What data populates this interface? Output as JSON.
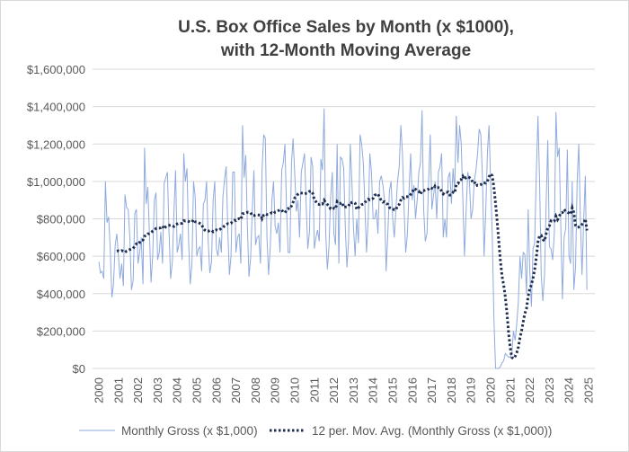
{
  "chart_data": {
    "type": "line",
    "title_line1": "U.S. Box Office Sales by Month (x $1000),",
    "title_line2": "with 12-Month Moving Average",
    "xlabel": "",
    "ylabel": "",
    "ylim": [
      0,
      1600000
    ],
    "xlim": [
      2000,
      2025
    ],
    "grid": true,
    "legend_position": "bottom",
    "y_tick_labels": [
      "$0",
      "$200,000",
      "$400,000",
      "$600,000",
      "$800,000",
      "$1,000,000",
      "$1,200,000",
      "$1,400,000",
      "$1,600,000"
    ],
    "y_ticks": [
      0,
      200000,
      400000,
      600000,
      800000,
      1000000,
      1200000,
      1400000,
      1600000
    ],
    "x_tick_labels": [
      "2000",
      "2001",
      "2002",
      "2003",
      "2004",
      "2005",
      "2006",
      "2007",
      "2008",
      "2009",
      "2010",
      "2011",
      "2012",
      "2013",
      "2014",
      "2015",
      "2016",
      "2017",
      "2018",
      "2019",
      "2020",
      "2021",
      "2022",
      "2023",
      "2024",
      "2025"
    ],
    "start": "2000-01",
    "frequency": "monthly",
    "series": [
      {
        "name": "Monthly Gross (x $1,000)",
        "color": "#8faadc",
        "style": "solid",
        "values": [
          570000,
          510000,
          520000,
          480000,
          1000000,
          780000,
          810000,
          640000,
          380000,
          450000,
          660000,
          720000,
          600000,
          480000,
          560000,
          440000,
          930000,
          860000,
          850000,
          700000,
          420000,
          470000,
          830000,
          850000,
          560000,
          620000,
          700000,
          450000,
          1180000,
          880000,
          970000,
          720000,
          460000,
          600000,
          900000,
          940000,
          580000,
          620000,
          730000,
          560000,
          990000,
          1020000,
          1050000,
          730000,
          480000,
          570000,
          840000,
          1060000,
          620000,
          660000,
          720000,
          580000,
          1150000,
          1000000,
          1070000,
          680000,
          450000,
          560000,
          1000000,
          920000,
          600000,
          640000,
          650000,
          520000,
          880000,
          900000,
          1000000,
          680000,
          510000,
          570000,
          900000,
          1000000,
          640000,
          600000,
          700000,
          620000,
          920000,
          1010000,
          1080000,
          740000,
          500000,
          600000,
          1050000,
          1050000,
          620000,
          700000,
          720000,
          560000,
          1300000,
          1020000,
          1140000,
          760000,
          490000,
          590000,
          850000,
          1060000,
          660000,
          700000,
          710000,
          560000,
          1070000,
          1250000,
          1230000,
          700000,
          500000,
          650000,
          900000,
          1000000,
          760000,
          720000,
          780000,
          620000,
          1060000,
          1100000,
          1200000,
          850000,
          620000,
          620000,
          1100000,
          1230000,
          1040000,
          840000,
          900000,
          700000,
          1050000,
          1100000,
          1150000,
          880000,
          640000,
          730000,
          1130000,
          1080000,
          640000,
          700000,
          740000,
          680000,
          1120000,
          1060000,
          1390000,
          720000,
          530000,
          650000,
          920000,
          1050000,
          720000,
          660000,
          1200000,
          560000,
          1130000,
          1120000,
          1070000,
          750000,
          540000,
          680000,
          1200000,
          1000000,
          750000,
          600000,
          800000,
          670000,
          1250000,
          1200000,
          1100000,
          870000,
          620000,
          800000,
          1150000,
          1050000,
          800000,
          800000,
          850000,
          720000,
          1000000,
          1030000,
          980000,
          900000,
          520000,
          720000,
          950000,
          1000000,
          800000,
          700000,
          850000,
          1000000,
          1080000,
          1300000,
          1150000,
          850000,
          620000,
          720000,
          950000,
          1150000,
          900000,
          980000,
          800000,
          900000,
          1050000,
          1100000,
          1380000,
          850000,
          680000,
          720000,
          1000000,
          1250000,
          850000,
          920000,
          1000000,
          800000,
          1050000,
          1080000,
          1150000,
          700000,
          800000,
          700000,
          1020000,
          1050000,
          880000,
          1070000,
          950000,
          1350000,
          1100000,
          1300000,
          1200000,
          900000,
          600000,
          850000,
          1050000,
          1000000,
          800000,
          850000,
          1000000,
          1060000,
          1150000,
          1280000,
          1250000,
          1020000,
          600000,
          830000,
          1150000,
          1300000,
          1000000,
          720000,
          280000,
          0,
          0,
          0,
          10000,
          30000,
          40000,
          80000,
          70000,
          60000,
          60000,
          80000,
          200000,
          150000,
          240000,
          360000,
          600000,
          480000,
          620000,
          610000,
          400000,
          850000,
          520000,
          330000,
          640000,
          670000,
          1050000,
          1350000,
          1000000,
          500000,
          360000,
          500000,
          880000,
          1220000,
          650000,
          640000,
          580000,
          720000,
          1370000,
          1130000,
          1180000,
          760000,
          370000,
          700000,
          750000,
          1170000,
          600000,
          560000,
          1000000,
          420000,
          540000,
          1000000,
          1200000,
          800000,
          500000,
          780000,
          1030000,
          420000
        ]
      },
      {
        "name": "12 per. Mov. Avg. (Monthly Gross (x $1,000))",
        "color": "#1f2d4f",
        "style": "dotted",
        "period": 12
      }
    ]
  }
}
